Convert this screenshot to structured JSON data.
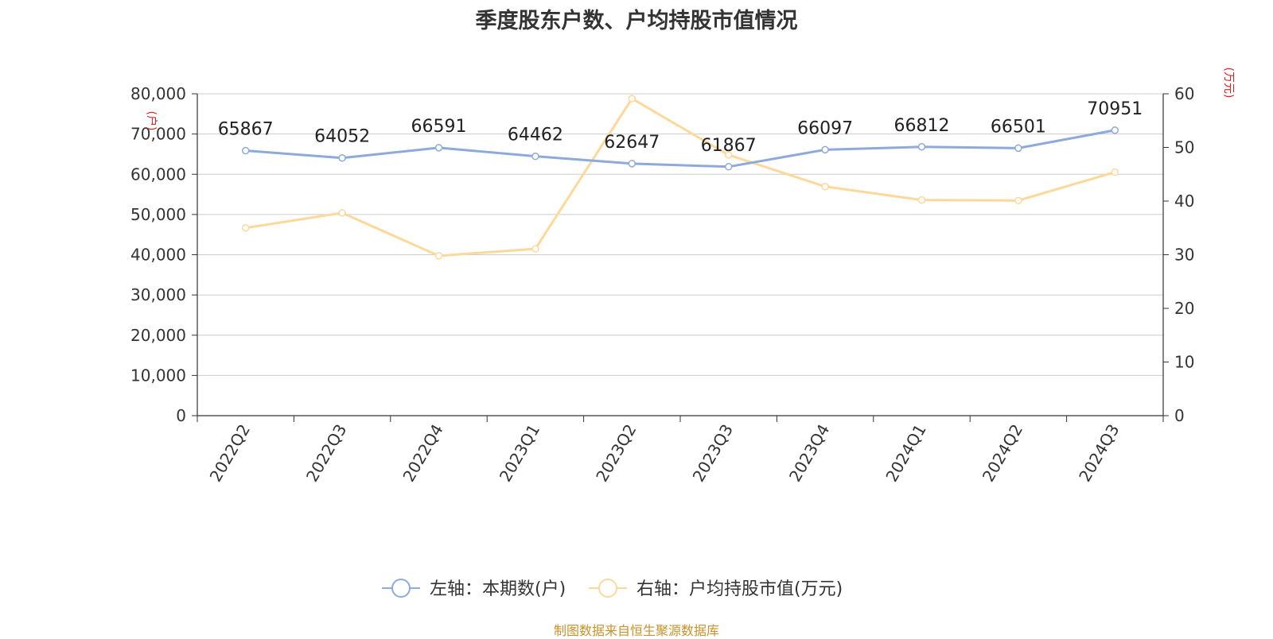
{
  "title": "季度股东户数、户均持股市值情况",
  "source": "制图数据来自恒生聚源数据库",
  "chart_data": {
    "type": "line",
    "categories": [
      "2022Q2",
      "2022Q3",
      "2022Q4",
      "2023Q1",
      "2023Q2",
      "2023Q3",
      "2023Q4",
      "2024Q1",
      "2024Q2",
      "2024Q3"
    ],
    "left_axis": {
      "unit": "户",
      "min": 0,
      "max": 80000,
      "ticks": [
        "0",
        "10,000",
        "20,000",
        "30,000",
        "40,000",
        "50,000",
        "60,000",
        "70,000",
        "80,000"
      ]
    },
    "right_axis": {
      "unit": "万元",
      "min": 0,
      "max": 60,
      "ticks": [
        "0",
        "10",
        "20",
        "30",
        "40",
        "50",
        "60"
      ]
    },
    "series": [
      {
        "name": "左轴：本期数(户)",
        "axis": "left",
        "color": "#8eaadb",
        "values": [
          65867,
          64052,
          66591,
          64462,
          62647,
          61867,
          66097,
          66812,
          66501,
          70951
        ],
        "labels": [
          "65867",
          "64052",
          "66591",
          "64462",
          "62647",
          "61867",
          "66097",
          "66812",
          "66501",
          "70951"
        ]
      },
      {
        "name": "右轴：户均持股市值(万元)",
        "axis": "right",
        "color": "#fdd89a",
        "values": [
          35.0,
          37.8,
          29.8,
          31.1,
          59.1,
          48.6,
          42.7,
          40.2,
          40.1,
          45.4
        ]
      }
    ],
    "grid": true,
    "legend": "bottom-center"
  }
}
